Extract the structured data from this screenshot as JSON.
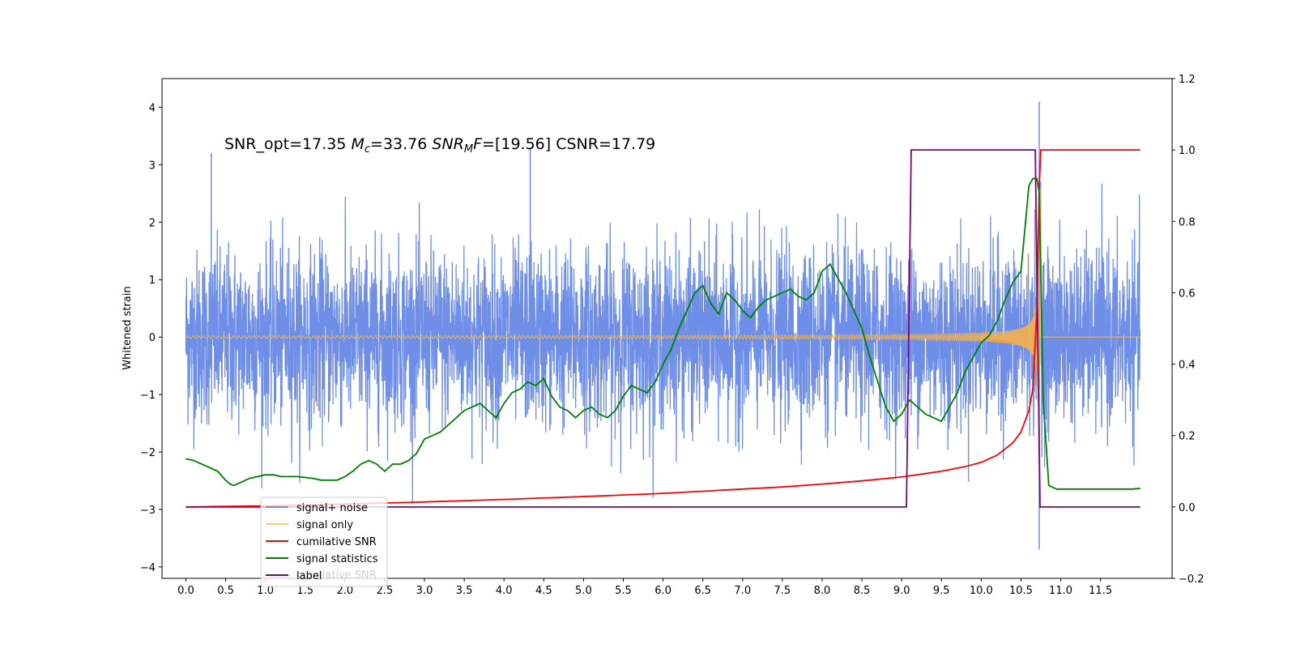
{
  "chart_data": {
    "type": "line",
    "ylabel": "Whitened strain",
    "annotation": {
      "prefix": "SNR_opt=17.35 ",
      "mc_symbol": "M",
      "mc_sub": "c",
      "mc_value": "=33.76  ",
      "snr_symbol": "SNR",
      "snr_sub": "M",
      "f_symbol": "F",
      "snr_value": "=[19.56] CSNR=17.79"
    },
    "x_ticks": [
      "0.0",
      "0.5",
      "1.0",
      "1.5",
      "2.0",
      "2.5",
      "3.0",
      "3.5",
      "4.0",
      "4.5",
      "5.0",
      "5.5",
      "6.0",
      "6.5",
      "7.0",
      "7.5",
      "8.0",
      "8.5",
      "9.0",
      "9.5",
      "10.0",
      "10.5",
      "11.0",
      "11.5"
    ],
    "xlim": [
      -0.3,
      12.4
    ],
    "ylim_left": [
      -4.2,
      4.5
    ],
    "y_ticks_left": [
      "4",
      "3",
      "2",
      "1",
      "0",
      "−1",
      "−2",
      "−3",
      "−4"
    ],
    "ylim_right": [
      -0.2,
      1.2
    ],
    "y_ticks_right": [
      "1.2",
      "1.0",
      "0.8",
      "0.6",
      "0.4",
      "0.2",
      "0.0",
      "−0.2"
    ],
    "legend": {
      "placement": "lower-left",
      "entries": [
        "signal+ noise",
        "signal only",
        "cumilative SNR",
        "signal statistics",
        "label"
      ],
      "ghost_text": "cumilative SNR"
    },
    "series": [
      {
        "name": "signal+ noise",
        "axis": "left",
        "color": "#6f8ee8",
        "description_type": "noise",
        "x_range": [
          0.0,
          12.0
        ],
        "typical_amplitude": 1.3,
        "peaks": [
          [
            0.32,
            3.2
          ],
          [
            4.33,
            3.3
          ],
          [
            10.73,
            4.1
          ],
          [
            10.73,
            -3.7
          ]
        ]
      },
      {
        "name": "signal only",
        "axis": "left",
        "color": "#f5b14a",
        "description_type": "chirp",
        "x_range": [
          0.0,
          12.0
        ],
        "merger_time": 10.73,
        "peak_amplitude": 3.5
      },
      {
        "name": "cumilative SNR",
        "axis": "right",
        "color": "#ff0000",
        "x": [
          0.0,
          1.0,
          2.0,
          3.0,
          4.0,
          5.0,
          6.0,
          7.0,
          7.5,
          8.0,
          8.5,
          9.0,
          9.5,
          9.8,
          10.0,
          10.2,
          10.4,
          10.5,
          10.6,
          10.65,
          10.7,
          10.73,
          10.75,
          12.0
        ],
        "y": [
          0.0,
          0.003,
          0.008,
          0.014,
          0.021,
          0.029,
          0.038,
          0.05,
          0.056,
          0.064,
          0.073,
          0.084,
          0.1,
          0.113,
          0.125,
          0.145,
          0.18,
          0.21,
          0.27,
          0.33,
          0.55,
          0.9,
          1.0,
          1.0
        ]
      },
      {
        "name": "signal statistics",
        "axis": "right",
        "color": "#008000",
        "x": [
          0.0,
          0.1,
          0.2,
          0.3,
          0.4,
          0.5,
          0.55,
          0.6,
          0.7,
          0.8,
          0.9,
          1.0,
          1.1,
          1.2,
          1.4,
          1.6,
          1.7,
          1.8,
          1.9,
          2.0,
          2.1,
          2.2,
          2.3,
          2.4,
          2.5,
          2.6,
          2.7,
          2.8,
          2.9,
          3.0,
          3.1,
          3.2,
          3.3,
          3.4,
          3.5,
          3.6,
          3.7,
          3.8,
          3.9,
          4.0,
          4.1,
          4.2,
          4.3,
          4.4,
          4.5,
          4.6,
          4.7,
          4.8,
          4.9,
          5.0,
          5.1,
          5.2,
          5.3,
          5.4,
          5.5,
          5.6,
          5.7,
          5.8,
          5.9,
          6.0,
          6.1,
          6.2,
          6.3,
          6.4,
          6.5,
          6.6,
          6.7,
          6.8,
          6.9,
          7.0,
          7.1,
          7.2,
          7.3,
          7.4,
          7.5,
          7.6,
          7.7,
          7.8,
          7.9,
          8.0,
          8.1,
          8.2,
          8.3,
          8.4,
          8.5,
          8.6,
          8.7,
          8.8,
          8.9,
          9.0,
          9.1,
          9.2,
          9.3,
          9.4,
          9.5,
          9.6,
          9.7,
          9.8,
          9.9,
          10.0,
          10.1,
          10.2,
          10.3,
          10.4,
          10.5,
          10.6,
          10.65,
          10.7,
          10.73,
          10.78,
          10.85,
          10.95,
          11.0,
          11.2,
          11.4,
          11.6,
          11.8,
          11.9,
          12.0
        ],
        "y": [
          0.135,
          0.13,
          0.12,
          0.11,
          0.1,
          0.075,
          0.065,
          0.06,
          0.07,
          0.08,
          0.085,
          0.09,
          0.09,
          0.085,
          0.085,
          0.08,
          0.075,
          0.075,
          0.075,
          0.085,
          0.1,
          0.12,
          0.13,
          0.12,
          0.1,
          0.12,
          0.12,
          0.13,
          0.15,
          0.19,
          0.2,
          0.21,
          0.23,
          0.25,
          0.27,
          0.28,
          0.29,
          0.27,
          0.25,
          0.29,
          0.32,
          0.33,
          0.35,
          0.34,
          0.36,
          0.31,
          0.28,
          0.27,
          0.25,
          0.27,
          0.28,
          0.26,
          0.25,
          0.27,
          0.31,
          0.34,
          0.33,
          0.32,
          0.35,
          0.4,
          0.44,
          0.5,
          0.55,
          0.6,
          0.62,
          0.57,
          0.54,
          0.6,
          0.58,
          0.55,
          0.53,
          0.56,
          0.58,
          0.59,
          0.6,
          0.61,
          0.59,
          0.58,
          0.6,
          0.66,
          0.68,
          0.64,
          0.6,
          0.55,
          0.5,
          0.42,
          0.35,
          0.28,
          0.24,
          0.26,
          0.3,
          0.28,
          0.26,
          0.25,
          0.24,
          0.28,
          0.32,
          0.38,
          0.42,
          0.46,
          0.48,
          0.52,
          0.58,
          0.63,
          0.66,
          0.9,
          0.92,
          0.92,
          0.88,
          0.3,
          0.06,
          0.05,
          0.05,
          0.05,
          0.05,
          0.05,
          0.05,
          0.05,
          0.052
        ]
      },
      {
        "name": "label",
        "axis": "right",
        "color": "#800080",
        "x": [
          0.0,
          9.06,
          9.12,
          10.68,
          10.74,
          12.0
        ],
        "y": [
          0.0,
          0.0,
          1.0,
          1.0,
          0.0,
          0.0
        ]
      }
    ]
  }
}
